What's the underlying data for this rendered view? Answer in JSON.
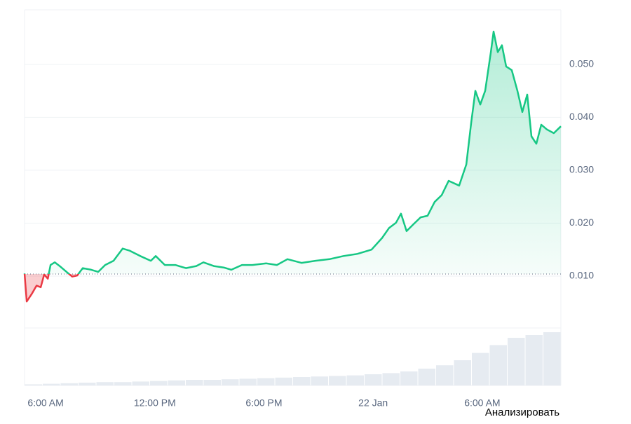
{
  "chart_data": {
    "type": "line",
    "series": [
      {
        "color": "#16c784",
        "below_color": "#ea3943",
        "x": [
          4.84,
          4.96,
          5.23,
          5.5,
          5.73,
          5.92,
          6.12,
          6.27,
          6.5,
          6.77,
          7.15,
          7.46,
          7.73,
          8.04,
          8.5,
          8.89,
          9.27,
          9.73,
          10.23,
          10.62,
          11.2,
          11.78,
          12.05,
          12.55,
          13.13,
          13.71,
          14.28,
          14.67,
          15.24,
          15.82,
          16.21,
          16.79,
          17.36,
          18.13,
          18.71,
          19.29,
          20.06,
          20.83,
          21.6,
          22.37,
          23.14,
          23.91,
          24.49,
          24.88,
          25.26,
          25.53,
          25.84,
          26.22,
          26.61,
          26.99,
          27.38,
          27.77,
          28.15,
          28.73,
          29.12,
          29.39,
          29.62,
          29.89,
          30.16,
          30.47,
          30.62,
          30.85,
          31.08,
          31.31,
          31.62,
          31.93,
          32.2,
          32.47,
          32.7,
          32.97,
          33.24,
          33.55,
          33.93,
          34.32
        ],
        "values": [
          0.0105,
          0.0052,
          0.0066,
          0.0082,
          0.0079,
          0.0103,
          0.0095,
          0.0121,
          0.0126,
          0.0119,
          0.0108,
          0.0099,
          0.0101,
          0.0115,
          0.0112,
          0.0108,
          0.0121,
          0.0129,
          0.0152,
          0.0148,
          0.0138,
          0.0129,
          0.0138,
          0.0121,
          0.0121,
          0.0115,
          0.0119,
          0.0126,
          0.0119,
          0.0116,
          0.0112,
          0.0121,
          0.0121,
          0.0124,
          0.0121,
          0.0132,
          0.0125,
          0.0129,
          0.0132,
          0.0138,
          0.0142,
          0.015,
          0.0172,
          0.0191,
          0.0201,
          0.0218,
          0.0185,
          0.0198,
          0.0211,
          0.0214,
          0.024,
          0.0253,
          0.028,
          0.0271,
          0.0311,
          0.039,
          0.045,
          0.0424,
          0.045,
          0.0523,
          0.0562,
          0.0523,
          0.0536,
          0.0496,
          0.0489,
          0.045,
          0.041,
          0.0443,
          0.0364,
          0.035,
          0.0386,
          0.0377,
          0.037,
          0.0383
        ]
      }
    ],
    "reference_value": 0.0104,
    "xlim": [
      4.84,
      34.32
    ],
    "xticks": [
      {
        "value": 6,
        "label": "6:00 AM"
      },
      {
        "value": 12,
        "label": "12:00 PM"
      },
      {
        "value": 18,
        "label": "6:00 PM"
      },
      {
        "value": 24,
        "label": "22 Jan"
      },
      {
        "value": 30,
        "label": "6:00 AM"
      }
    ],
    "ylim": [
      0.0002,
      0.0603
    ],
    "yticks": [
      {
        "value": 0.01,
        "label": "0.010"
      },
      {
        "value": 0.02,
        "label": "0.020"
      },
      {
        "value": 0.03,
        "label": "0.030"
      },
      {
        "value": 0.04,
        "label": "0.040"
      },
      {
        "value": 0.05,
        "label": "0.050"
      }
    ],
    "grid": true,
    "volume": {
      "color": "#e6ebf1",
      "ylim": [
        0,
        100
      ],
      "values": [
        2,
        3,
        4,
        5,
        6,
        6,
        7,
        8,
        9,
        10,
        10,
        11,
        12,
        13,
        14,
        15,
        16,
        17,
        18,
        20,
        22,
        25,
        30,
        36,
        45,
        58,
        72,
        85,
        90,
        95
      ]
    },
    "button_label": "Анализировать"
  }
}
